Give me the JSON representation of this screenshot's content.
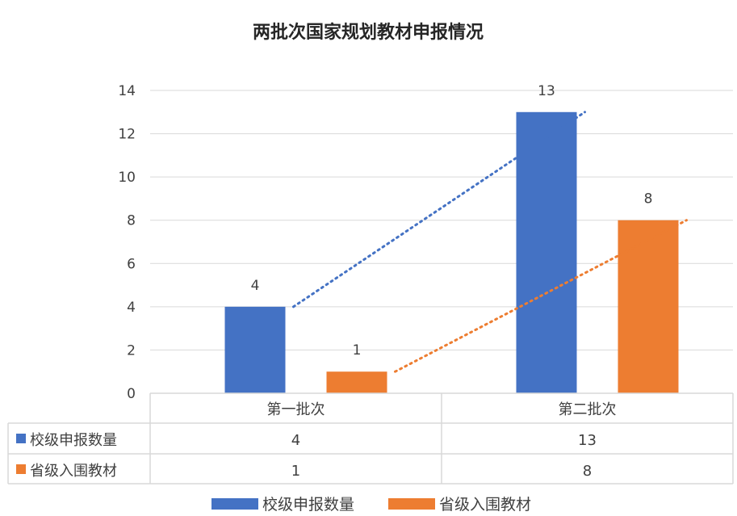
{
  "chart_data": {
    "type": "bar",
    "title": "两批次国家规划教材申报情况",
    "categories": [
      "第一批次",
      "第二批次"
    ],
    "series": [
      {
        "name": "校级申报数量",
        "values": [
          4,
          13
        ],
        "color": "#4472C4"
      },
      {
        "name": "省级入围教材",
        "values": [
          1,
          8
        ],
        "color": "#ED7D31"
      }
    ],
    "ylim": [
      0,
      14
    ],
    "yticks": [
      0,
      2,
      4,
      6,
      8,
      10,
      12,
      14
    ],
    "grid": true,
    "data_labels": true,
    "trendlines": true,
    "data_table": true,
    "legend_position": "bottom",
    "xlabel": "",
    "ylabel": ""
  }
}
